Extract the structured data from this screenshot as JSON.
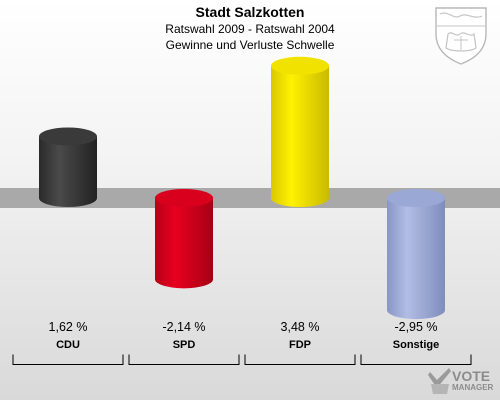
{
  "header": {
    "title": "Stadt Salzkotten",
    "subtitle": "Ratswahl 2009 - Ratswahl 2004",
    "subtitle2": "Gewinne und Verluste Schwelle"
  },
  "chart_data": {
    "type": "bar",
    "title": "Stadt Salzkotten",
    "subtitle": "Ratswahl 2009 - Ratswahl 2004 / Gewinne und Verluste Schwelle",
    "categories": [
      "CDU",
      "SPD",
      "FDP",
      "Sonstige"
    ],
    "values": [
      1.62,
      -2.14,
      3.48,
      -2.95
    ],
    "value_labels": [
      "1,62 %",
      "-2,14 %",
      "3,48 %",
      "-2,95 %"
    ],
    "colors": [
      "#3a3a3a",
      "#d8001d",
      "#f2e200",
      "#9aa8d6"
    ],
    "xlabel": "",
    "ylabel": "",
    "ylim": [
      -3.5,
      4.5
    ],
    "grid": false,
    "legend": "none"
  },
  "logo": {
    "line1": "VOTE",
    "line2": "MANAGER"
  },
  "crest": {
    "icon": "coat-of-arms-icon"
  }
}
